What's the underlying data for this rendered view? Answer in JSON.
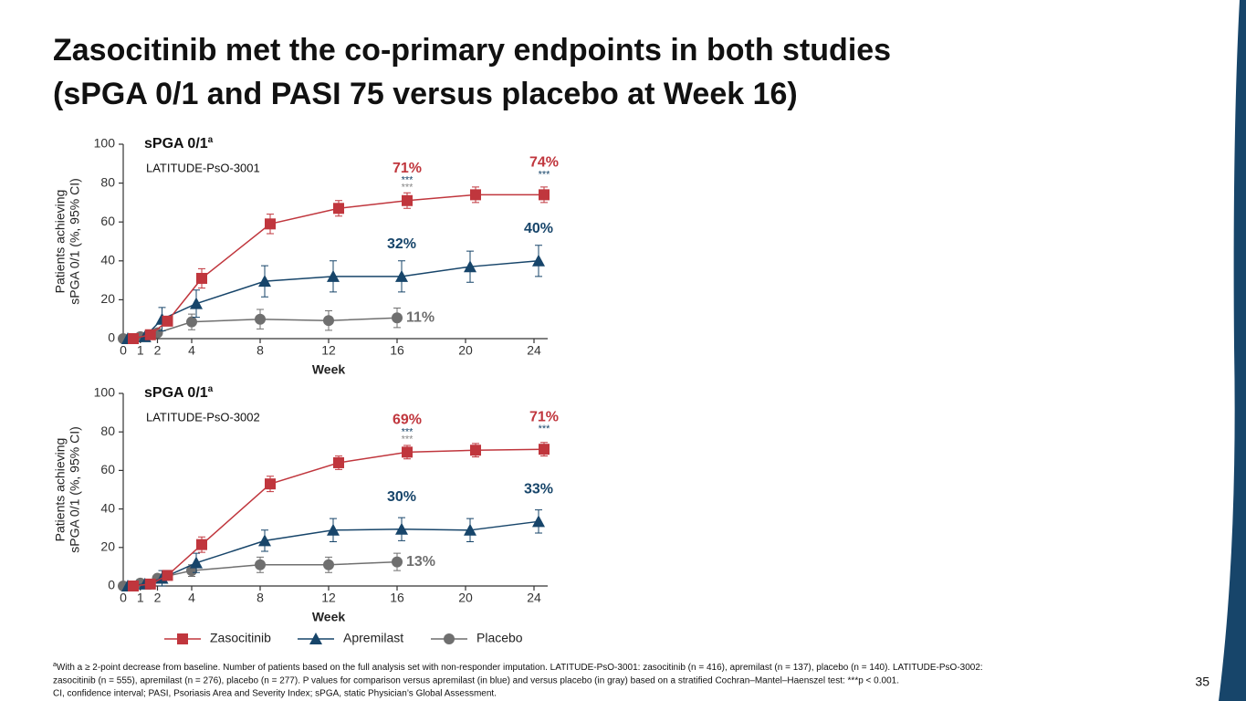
{
  "title": [
    "Zasocitinib met the co-primary endpoints in both studies",
    "(sPGA 0/1 and PASI 75 versus placebo at Week 16)"
  ],
  "footnote_marker": "a",
  "footnotes": [
    "With a ≥ 2-point decrease from baseline. Number of patients based on the full analysis set with non-responder imputation. LATITUDE-PsO-3001: zasocitinib (n = 416), apremilast (n = 137), placebo (n = 140). LATITUDE-PsO-3002:",
    "zasocitinib (n = 555), apremilast (n = 276), placebo (n = 277). P values for comparison versus apremilast (in blue) and versus placebo (in gray) based on a stratified Cochran–Mantel–Haenszel test: ***p < 0.001.",
    "CI, confidence interval; PASI, Psoriasis Area and Severity Index; sPGA, static Physician’s Global Assessment."
  ],
  "page_number": "35",
  "chart_data": [
    {
      "type": "line",
      "title": "sPGA 0/1",
      "title_superscript": "a",
      "subtitle": "LATITUDE-PsO-3001",
      "xlabel": "Week",
      "ylabel": [
        "Patients achieving",
        "sPGA 0/1 (%, 95% CI)"
      ],
      "x": [
        0,
        1,
        2,
        4,
        8,
        12,
        16,
        20,
        24
      ],
      "xlim": [
        0,
        24
      ],
      "xticks": [
        0,
        1,
        2,
        4,
        8,
        12,
        16,
        20,
        24
      ],
      "ylim": [
        0,
        100
      ],
      "yticks": [
        0,
        20,
        40,
        60,
        80,
        100
      ],
      "series": [
        {
          "color": "#c0363d",
          "marker": "square",
          "label_position": "above",
          "values": [
            0,
            2,
            9,
            31,
            59,
            67,
            71,
            74,
            74
          ],
          "errors": [
            null,
            null,
            null,
            5,
            5,
            4,
            4,
            4,
            4
          ],
          "value_labels": [
            null,
            null,
            null,
            null,
            null,
            null,
            "71%",
            null,
            "74%"
          ]
        },
        {
          "color": "#17456a",
          "marker": "triangle",
          "label_position": "above",
          "values": [
            0,
            1,
            10,
            18,
            29.5,
            32,
            32,
            37,
            40
          ],
          "errors": [
            null,
            null,
            6,
            7,
            8,
            8,
            8,
            8,
            8
          ],
          "value_labels": [
            null,
            null,
            null,
            null,
            null,
            null,
            "32%",
            null,
            "40%"
          ]
        },
        {
          "color": "#6f6f6f",
          "marker": "circle",
          "label_position": "right",
          "values": [
            0,
            1,
            3,
            8.6,
            10,
            9.3,
            10.7,
            null,
            null
          ],
          "errors": [
            null,
            null,
            null,
            4,
            5,
            5,
            5,
            null,
            null
          ],
          "value_labels": [
            null,
            null,
            null,
            null,
            null,
            null,
            "11%",
            null,
            null
          ]
        }
      ],
      "annotations": [
        {
          "x": 16,
          "text": "***",
          "color": "#17456a"
        },
        {
          "x": 16,
          "text": "***",
          "color": "#888888"
        },
        {
          "x": 24,
          "text": "***",
          "color": "#17456a"
        }
      ]
    },
    {
      "type": "line",
      "title": "sPGA 0/1",
      "title_superscript": "a",
      "subtitle": "LATITUDE-PsO-3002",
      "xlabel": "Week",
      "ylabel": [
        "Patients achieving",
        "sPGA 0/1 (%, 95% CI)"
      ],
      "x": [
        0,
        1,
        2,
        4,
        8,
        12,
        16,
        20,
        24
      ],
      "xlim": [
        0,
        24
      ],
      "xticks": [
        0,
        1,
        2,
        4,
        8,
        12,
        16,
        20,
        24
      ],
      "ylim": [
        0,
        100
      ],
      "yticks": [
        0,
        20,
        40,
        60,
        80,
        100
      ],
      "legend": "bottom",
      "series": [
        {
          "name": "Zasocitinib",
          "color": "#c0363d",
          "marker": "square",
          "label_position": "above",
          "values": [
            0,
            1,
            5.5,
            21.5,
            53,
            64,
            69.5,
            70.5,
            71
          ],
          "errors": [
            null,
            null,
            null,
            4,
            4,
            3.5,
            3.5,
            3.5,
            3.5
          ],
          "value_labels": [
            null,
            null,
            null,
            null,
            null,
            null,
            "69%",
            null,
            "71%"
          ]
        },
        {
          "name": "Apremilast",
          "color": "#17456a",
          "marker": "triangle",
          "label_position": "above",
          "values": [
            0,
            1,
            4,
            12,
            23.5,
            29,
            29.5,
            29,
            33.5
          ],
          "errors": [
            null,
            null,
            4,
            5,
            5.5,
            6,
            6,
            6,
            6
          ],
          "value_labels": [
            null,
            null,
            null,
            null,
            null,
            null,
            "30%",
            null,
            "33%"
          ]
        },
        {
          "name": "Placebo",
          "color": "#6f6f6f",
          "marker": "circle",
          "label_position": "right",
          "values": [
            0,
            1.5,
            4,
            8,
            11,
            11,
            12.5,
            null,
            null
          ],
          "errors": [
            null,
            null,
            null,
            3,
            4,
            4,
            4.5,
            null,
            null
          ],
          "value_labels": [
            null,
            null,
            null,
            null,
            null,
            null,
            "13%",
            null,
            null
          ]
        }
      ],
      "annotations": [
        {
          "x": 16,
          "text": "***",
          "color": "#17456a"
        },
        {
          "x": 16,
          "text": "***",
          "color": "#888888"
        },
        {
          "x": 24,
          "text": "***",
          "color": "#17456a"
        }
      ]
    }
  ]
}
